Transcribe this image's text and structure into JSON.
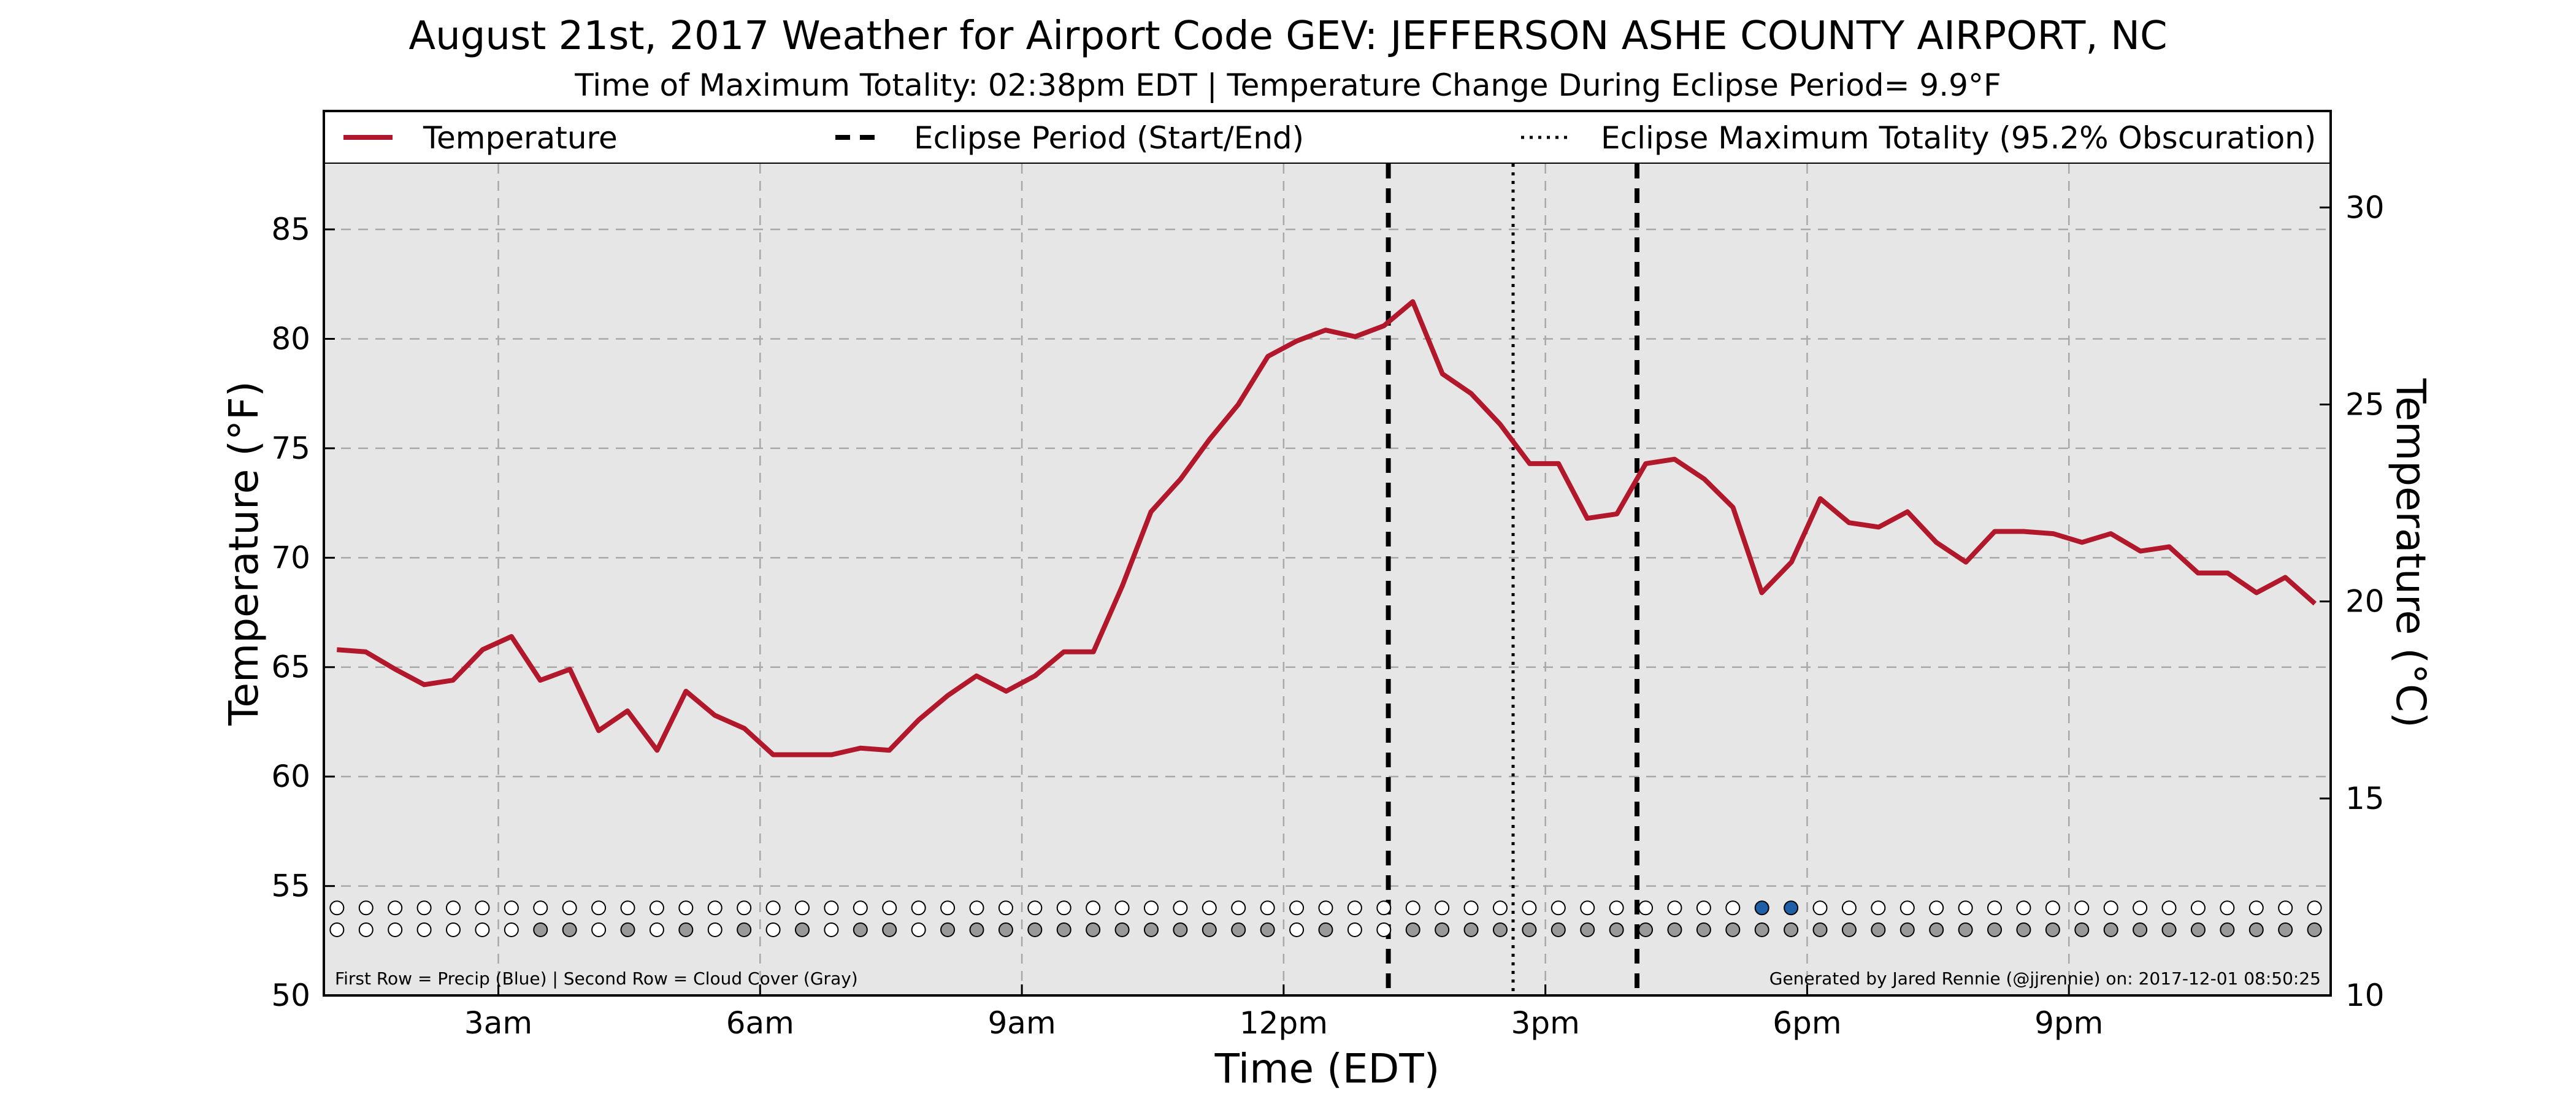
{
  "colors": {
    "temperature_line": "#b2182b",
    "plot_background": "#e6e6e6",
    "precip_dot": "#1f5fa8",
    "cloud_dot": "#999999",
    "empty_dot": "#ffffff"
  },
  "chart_data": {
    "type": "line",
    "title": "August 21st, 2017 Weather for Airport Code GEV: JEFFERSON ASHE COUNTY AIRPORT, NC",
    "subtitle": "Time of Maximum Totality: 02:38pm EDT | Temperature Change During Eclipse Period= 9.9°F",
    "xlabel": "Time (EDT)",
    "ylabel": "Temperature (°F)",
    "ylabel_right": "Temperature (°C)",
    "xlim": [
      1.0,
      24.0
    ],
    "ylim": [
      50,
      88
    ],
    "ylim_right_celsius": [
      10,
      31.11
    ],
    "grid": true,
    "legend_placement": "top, full width above plot",
    "x_ticks": [
      {
        "value": 3,
        "label": "3am"
      },
      {
        "value": 6,
        "label": "6am"
      },
      {
        "value": 9,
        "label": "9am"
      },
      {
        "value": 12,
        "label": "12pm"
      },
      {
        "value": 15,
        "label": "3pm"
      },
      {
        "value": 18,
        "label": "6pm"
      },
      {
        "value": 21,
        "label": "9pm"
      }
    ],
    "y_ticks": [
      50,
      55,
      60,
      65,
      70,
      75,
      80,
      85
    ],
    "y_ticks_right": [
      10,
      15,
      20,
      25,
      30
    ],
    "legend": [
      {
        "label": "Temperature",
        "style": "solid"
      },
      {
        "label": "Eclipse Period (Start/End)",
        "style": "dashed"
      },
      {
        "label": "Eclipse Maximum Totality (95.2% Obscuration)",
        "style": "dotted"
      }
    ],
    "eclipse_start": 13.2,
    "eclipse_end": 16.05,
    "eclipse_max": 14.63,
    "series": [
      {
        "name": "Temperature",
        "x": [
          1.15,
          1.48,
          1.82,
          2.15,
          2.48,
          2.82,
          3.15,
          3.48,
          3.82,
          4.15,
          4.48,
          4.82,
          5.15,
          5.48,
          5.82,
          6.15,
          6.48,
          6.82,
          7.15,
          7.48,
          7.82,
          8.15,
          8.48,
          8.82,
          9.15,
          9.48,
          9.82,
          10.15,
          10.48,
          10.82,
          11.15,
          11.48,
          11.82,
          12.15,
          12.48,
          12.82,
          13.15,
          13.48,
          13.82,
          14.15,
          14.48,
          14.82,
          15.15,
          15.48,
          15.82,
          16.15,
          16.48,
          16.82,
          17.15,
          17.48,
          17.82,
          18.15,
          18.48,
          18.82,
          19.15,
          19.48,
          19.82,
          20.15,
          20.48,
          20.82,
          21.15,
          21.48,
          21.82,
          22.15,
          22.48,
          22.82,
          23.15,
          23.48,
          23.82
        ],
        "values": [
          65.8,
          65.7,
          64.9,
          64.2,
          64.4,
          65.8,
          66.4,
          64.4,
          64.9,
          62.1,
          63.0,
          61.2,
          63.9,
          62.8,
          62.2,
          61.0,
          61.0,
          61.0,
          61.3,
          61.2,
          62.6,
          63.7,
          64.6,
          63.9,
          64.6,
          65.7,
          65.7,
          68.7,
          72.1,
          73.6,
          75.4,
          77.0,
          79.2,
          79.9,
          80.4,
          80.1,
          80.6,
          81.7,
          78.4,
          77.5,
          76.1,
          74.3,
          74.3,
          71.8,
          72.0,
          74.3,
          74.5,
          73.6,
          72.3,
          68.4,
          69.8,
          72.7,
          71.6,
          71.4,
          72.1,
          70.7,
          69.8,
          71.2,
          71.2,
          71.1,
          70.7,
          71.1,
          70.3,
          70.5,
          69.3,
          69.3,
          68.4,
          69.1,
          67.9
        ]
      }
    ],
    "precip_row_y": 54.0,
    "precip_blue_x": [
      17.48,
      17.82
    ],
    "cloud_row_y": 53.0,
    "cloud_gray_x": [
      3.48,
      3.82,
      4.48,
      5.15,
      5.82,
      6.48,
      7.15,
      7.48,
      8.15,
      8.48,
      8.82,
      9.15,
      9.48,
      9.82,
      10.15,
      10.48,
      10.82,
      11.15,
      11.48,
      11.82,
      12.48,
      13.48,
      13.82,
      14.15,
      14.48,
      14.82,
      15.15,
      15.48,
      15.82,
      16.15,
      16.48,
      16.82,
      17.15,
      17.48,
      17.82,
      18.15,
      18.48,
      18.82,
      19.15,
      19.48,
      19.82,
      20.15,
      20.48,
      20.82,
      21.15,
      21.48,
      21.82,
      22.15,
      22.48,
      22.82,
      23.15,
      23.48,
      23.82
    ],
    "dot_x_start": 1.15,
    "dot_x_step": 0.3333,
    "dot_count": 69,
    "annotation_left": "First Row = Precip (Blue) | Second Row = Cloud Cover (Gray)",
    "annotation_right": "Generated by Jared Rennie (@jjrennie) on: 2017-12-01 08:50:25"
  }
}
